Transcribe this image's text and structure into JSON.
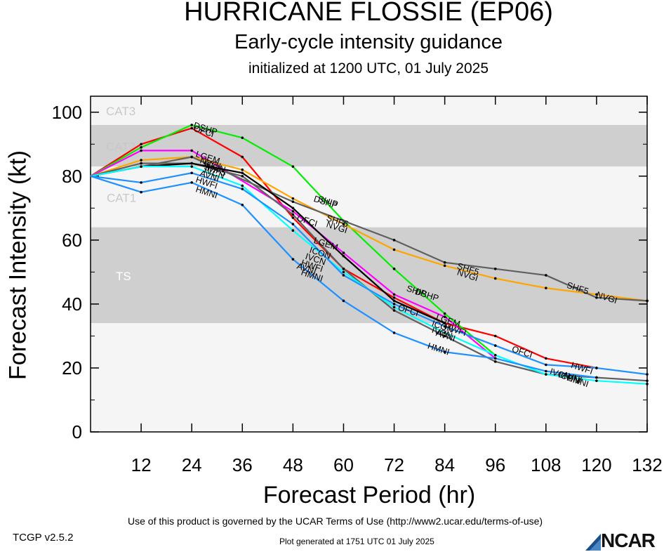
{
  "header": {
    "title": "HURRICANE FLOSSIE (EP06)",
    "subtitle": "Early-cycle intensity guidance",
    "initialized": "initialized at 1200 UTC, 01 July 2025"
  },
  "footer": {
    "terms": "Use of this product is governed by the UCAR Terms of Use (http://www2.ucar.edu/terms-of-use)",
    "version": "TCGP v2.5.2",
    "generated": "Plot generated at 1751 UTC   01 July 2025",
    "logo": "NCAR"
  },
  "chart_data": {
    "type": "line",
    "title": "HURRICANE FLOSSIE (EP06)",
    "xlabel": "Forecast Period (hr)",
    "ylabel": "Forecast Intensity (kt)",
    "xlim": [
      0,
      132
    ],
    "ylim": [
      0,
      100
    ],
    "xticks": [
      12,
      24,
      36,
      48,
      60,
      72,
      84,
      96,
      108,
      120,
      132
    ],
    "yticks": [
      0,
      20,
      40,
      60,
      80,
      100
    ],
    "grid": false,
    "bands": [
      {
        "label": "CAT3",
        "from": 96,
        "to": 105,
        "color": "#f5f5f5"
      },
      {
        "label": "CAT2",
        "from": 83,
        "to": 96,
        "color": "#cfcfcf"
      },
      {
        "label": "CAT1",
        "from": 64,
        "to": 83,
        "color": "#f5f5f5"
      },
      {
        "label": "TS",
        "from": 34,
        "to": 64,
        "color": "#cfcfcf"
      },
      {
        "label": "",
        "from": 0,
        "to": 34,
        "color": "#f5f5f5"
      }
    ],
    "series": [
      {
        "color": "#ff0000",
        "x": [
          0,
          12,
          24,
          36,
          48,
          60,
          72,
          84,
          96,
          108,
          120
        ],
        "y": [
          80,
          90,
          95,
          86,
          67,
          51,
          42,
          34,
          30,
          23,
          20
        ]
      },
      {
        "color": "#00ee00",
        "x": [
          0,
          12,
          24,
          36,
          48,
          60,
          72,
          84,
          96
        ],
        "y": [
          80,
          89,
          96,
          92,
          83,
          66,
          51,
          37,
          24
        ]
      },
      {
        "color": "#ff00ff",
        "x": [
          0,
          12,
          24,
          48,
          60,
          72,
          84,
          96
        ],
        "y": [
          80,
          88,
          88,
          69,
          56,
          43,
          36,
          23
        ]
      },
      {
        "color": "#ffa500",
        "x": [
          0,
          12,
          24,
          36,
          48,
          60,
          72,
          84,
          96,
          108,
          120,
          132
        ],
        "y": [
          80,
          85,
          86,
          82,
          73,
          65,
          57,
          52,
          48,
          45,
          43,
          41
        ]
      },
      {
        "color": "#606060",
        "x": [
          0,
          12,
          24,
          48,
          72,
          84,
          96,
          108,
          120,
          132
        ],
        "y": [
          80,
          83,
          86,
          72,
          60,
          53,
          51,
          49,
          42,
          41
        ]
      },
      {
        "color": "#606060",
        "x": [
          0,
          12,
          24,
          36,
          48,
          60,
          72,
          84,
          96,
          108,
          120,
          132
        ],
        "y": [
          80,
          84,
          84,
          80,
          68,
          51,
          38,
          30,
          22,
          18,
          17,
          16
        ]
      },
      {
        "color": "#000000",
        "x": [
          0,
          12,
          24,
          36,
          48,
          60,
          72,
          84
        ],
        "y": [
          80,
          83,
          84,
          81,
          70,
          55,
          41,
          34
        ]
      },
      {
        "color": "#00ffff",
        "x": [
          0,
          12,
          24,
          36,
          48,
          60,
          72,
          84,
          96,
          108,
          120,
          132
        ],
        "y": [
          80,
          83,
          83,
          77,
          63,
          50,
          39,
          31,
          24,
          18,
          16,
          15
        ]
      },
      {
        "color": "#1e90ff",
        "x": [
          0,
          12,
          24,
          36,
          48,
          60,
          72,
          84,
          96,
          108,
          120,
          132
        ],
        "y": [
          80,
          78,
          81,
          76,
          65,
          49,
          40,
          33,
          27,
          21,
          20,
          18
        ]
      },
      {
        "color": "#1e90ff",
        "x": [
          0,
          12,
          24,
          36,
          48,
          60,
          72,
          84,
          96,
          108,
          120
        ],
        "y": [
          80,
          75,
          78,
          71,
          54,
          41,
          31,
          25,
          23,
          19,
          17
        ]
      }
    ],
    "annotations": [
      {
        "text": "DSHP",
        "x": 24.5,
        "y": 96
      },
      {
        "text": "OFCI",
        "x": 24.5,
        "y": 95
      },
      {
        "text": "LGEM",
        "x": 25,
        "y": 87
      },
      {
        "text": "NVGI",
        "x": 26,
        "y": 85
      },
      {
        "text": "ICON",
        "x": 27,
        "y": 84
      },
      {
        "text": "SHF5",
        "x": 27,
        "y": 83
      },
      {
        "text": "IVCN",
        "x": 27,
        "y": 82
      },
      {
        "text": "AVNI",
        "x": 26,
        "y": 81
      },
      {
        "text": "HWFI",
        "x": 25,
        "y": 79
      },
      {
        "text": "HMNI",
        "x": 25,
        "y": 76
      },
      {
        "text": "SHIP",
        "x": 54,
        "y": 73
      },
      {
        "text": "DSHP",
        "x": 53,
        "y": 73
      },
      {
        "text": "SHF5",
        "x": 56,
        "y": 67
      },
      {
        "text": "NVGI",
        "x": 56,
        "y": 65
      },
      {
        "text": "OFCI",
        "x": 49,
        "y": 67
      },
      {
        "text": "LGEM",
        "x": 53,
        "y": 60
      },
      {
        "text": "ICON",
        "x": 52,
        "y": 57
      },
      {
        "text": "IVCN",
        "x": 51,
        "y": 55
      },
      {
        "text": "HWFI",
        "x": 50,
        "y": 53
      },
      {
        "text": "AVNI",
        "x": 49,
        "y": 52
      },
      {
        "text": "HMNI",
        "x": 50,
        "y": 50
      },
      {
        "text": "SHIP",
        "x": 75,
        "y": 45
      },
      {
        "text": "DSHP",
        "x": 77,
        "y": 44
      },
      {
        "text": "OFCI",
        "x": 73,
        "y": 39
      },
      {
        "text": "LGEM",
        "x": 82,
        "y": 36
      },
      {
        "text": "ICON",
        "x": 81,
        "y": 34
      },
      {
        "text": "HWFI",
        "x": 84,
        "y": 33
      },
      {
        "text": "IVCN",
        "x": 81,
        "y": 32
      },
      {
        "text": "AVNI",
        "x": 82,
        "y": 31
      },
      {
        "text": "HMNI",
        "x": 80,
        "y": 27
      },
      {
        "text": "SHF5",
        "x": 87,
        "y": 52
      },
      {
        "text": "NVGI",
        "x": 87,
        "y": 50
      },
      {
        "text": "OFCI",
        "x": 100,
        "y": 26
      },
      {
        "text": "HWFI",
        "x": 114,
        "y": 21
      },
      {
        "text": "IVCN",
        "x": 109,
        "y": 19
      },
      {
        "text": "ICON",
        "x": 111,
        "y": 18
      },
      {
        "text": "AVNI",
        "x": 112,
        "y": 18
      },
      {
        "text": "HMNI",
        "x": 113,
        "y": 17
      },
      {
        "text": "SHF5",
        "x": 113,
        "y": 46
      },
      {
        "text": "NVGI",
        "x": 120,
        "y": 43
      }
    ]
  }
}
